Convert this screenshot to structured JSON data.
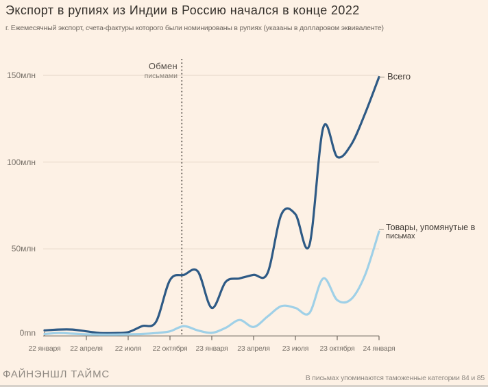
{
  "header": {
    "title": "Экспорт в рупиях из Индии в Россию начался в конце 2022",
    "subtitle": "г. Ежемесячный экспорт, счета-фактуры которого были номинированы в рупиях (указаны в долларовом эквиваленте)"
  },
  "annotation": {
    "line1": "Обмен",
    "line2": "письмами"
  },
  "series_labels": {
    "total": "Всего",
    "goods_line1": "Товары, упомянутые в",
    "goods_line2": "письмах"
  },
  "footer": {
    "source": "ФАЙНЭНШЛ ТАЙМС",
    "note": "В письмах упоминаются таможенные категории 84 и 85"
  },
  "colors": {
    "background": "#fdf1e5",
    "total_line": "#2e5a85",
    "goods_line": "#9fd0e7",
    "gridline": "#e3d5c6",
    "axis": "#6e675f",
    "event_line": "#46413c"
  },
  "chart_data": {
    "type": "line",
    "title": "Экспорт в рупиях из Индии в Россию начался в конце 2022",
    "n_points": 25,
    "x_tick_labels": [
      "22 января",
      "22 апреля",
      "22 июля",
      "22 октября",
      "23 января",
      "23 апреля",
      "23 июля",
      "23 октября",
      "24 января"
    ],
    "x_tick_indices": [
      0,
      3,
      6,
      9,
      12,
      15,
      18,
      21,
      24
    ],
    "y_ticks": [
      {
        "value": 150,
        "label": "150млн"
      },
      {
        "value": 100,
        "label": "100млн"
      },
      {
        "value": 50,
        "label": "50млн"
      },
      {
        "value": 0,
        "label": "0mn"
      }
    ],
    "ylim": [
      0,
      155
    ],
    "grid": true,
    "legend_position": "line-end-labels",
    "event": {
      "label": "Обмен письмами",
      "month_index": 9.85
    },
    "series": [
      {
        "name": "Всего",
        "color": "#2e5a85",
        "values": [
          3,
          3.5,
          3.5,
          2.5,
          1.5,
          1.5,
          2,
          5.5,
          8,
          32,
          35,
          37,
          16,
          31,
          33,
          35,
          36,
          70,
          70,
          52,
          120,
          103,
          110,
          128,
          149
        ]
      },
      {
        "name": "Товары, упомянутые в письмах",
        "color": "#9fd0e7",
        "values": [
          1,
          1.5,
          1.2,
          0.8,
          0.6,
          0.6,
          0.8,
          1,
          1.5,
          2.5,
          5.5,
          3,
          1.6,
          4.5,
          9,
          5,
          11,
          17,
          16,
          13,
          33,
          20.5,
          21,
          35,
          60
        ]
      }
    ]
  }
}
